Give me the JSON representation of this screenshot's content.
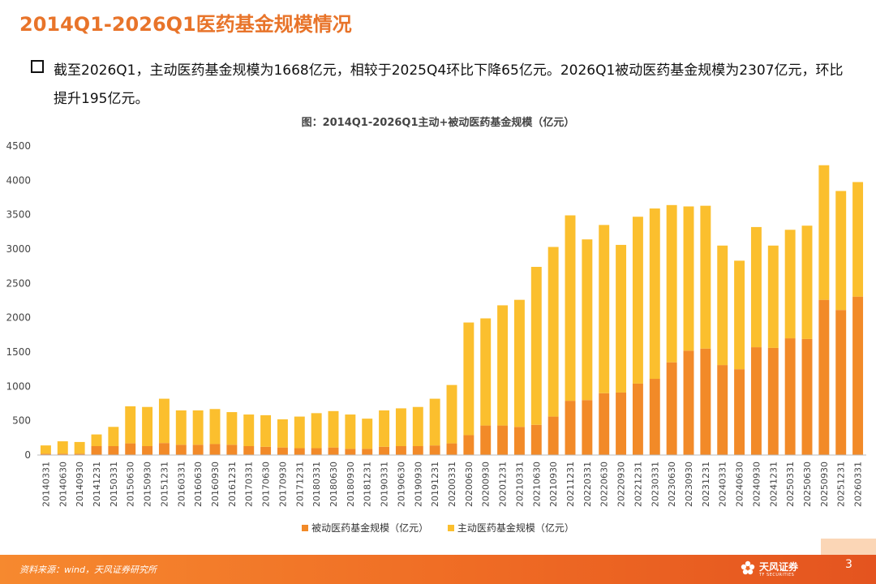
{
  "header": {
    "title": "2014Q1-2026Q1医药基金规模情况"
  },
  "summary": {
    "text": "截至2026Q1，主动医药基金规模为1668亿元，相较于2025Q4环比下降65亿元。2026Q1被动医药基金规模为2307亿元，环比提升195亿元。"
  },
  "colors": {
    "title": "#e8742a",
    "passive": "#f28a28",
    "active": "#fbbf2e",
    "footer": "#ef6b24"
  },
  "chart_data": {
    "type": "bar",
    "stacked": true,
    "title": "图：2014Q1-2026Q1主动+被动医药基金规模（亿元）",
    "ylim": [
      0,
      4500
    ],
    "yticks": [
      0,
      500,
      1000,
      1500,
      2000,
      2500,
      3000,
      3500,
      4000,
      4500
    ],
    "legend_position": "bottom",
    "categories": [
      "20140331",
      "20140630",
      "20140930",
      "20141231",
      "20150331",
      "20150630",
      "20150930",
      "20151231",
      "20160331",
      "20160630",
      "20160930",
      "20161231",
      "20170331",
      "20170630",
      "20170930",
      "20171231",
      "20180331",
      "20180630",
      "20180930",
      "20181231",
      "20190331",
      "20190630",
      "20190930",
      "20191231",
      "20200331",
      "20200630",
      "20200930",
      "20201231",
      "20210331",
      "20210630",
      "20210930",
      "20211231",
      "20220331",
      "20220630",
      "20220930",
      "20221231",
      "20230331",
      "20230630",
      "20230930",
      "20231231",
      "20240331",
      "20240630",
      "20240930",
      "20241231",
      "20250331",
      "20250630",
      "20250930",
      "20251231",
      "20260331"
    ],
    "series": [
      {
        "name": "被动医药基金规模（亿元）",
        "values": [
          20,
          20,
          20,
          130,
          130,
          170,
          130,
          175,
          150,
          150,
          160,
          150,
          130,
          120,
          110,
          100,
          100,
          110,
          90,
          90,
          120,
          130,
          130,
          140,
          170,
          290,
          430,
          430,
          410,
          440,
          560,
          790,
          800,
          900,
          910,
          1040,
          1110,
          1350,
          1520,
          1550,
          1310,
          1250,
          1570,
          1560,
          1700,
          1690,
          2260,
          2112,
          2307
        ]
      },
      {
        "name": "主动医药基金规模（亿元）",
        "values": [
          120,
          180,
          170,
          170,
          280,
          540,
          570,
          645,
          500,
          500,
          510,
          475,
          460,
          460,
          410,
          460,
          510,
          530,
          500,
          440,
          530,
          550,
          570,
          680,
          850,
          1640,
          1560,
          1750,
          1850,
          2300,
          2470,
          2700,
          2340,
          2450,
          2150,
          2430,
          2480,
          2290,
          2100,
          2080,
          1740,
          1580,
          1750,
          1490,
          1580,
          1650,
          1960,
          1733,
          1668
        ]
      }
    ]
  },
  "footer": {
    "source": "资料来源：wind，天风证券研究所",
    "brand": "天风证券",
    "brand_sub": "TF SECURITIES",
    "page": "3"
  }
}
